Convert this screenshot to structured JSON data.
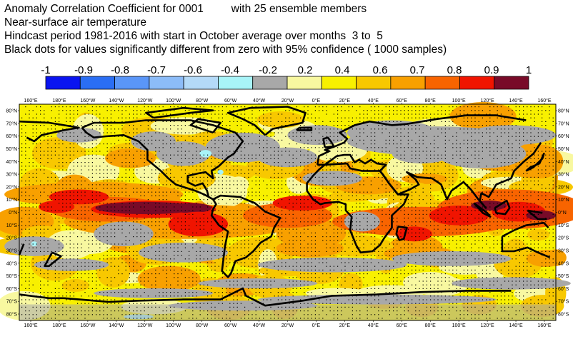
{
  "title": {
    "line1": "Anomaly Correlation Coefficient for 0001         with 25 ensemble members",
    "line2": "Near-surface air temperature",
    "line3": "Hindcast period 1981-2016 with start in October average over months  3 to  5",
    "line4": "Black dots for values significantly different from zero with 95% confidence ( 1000 samples)"
  },
  "legend": {
    "labels": [
      "-1",
      "-0.9",
      "-0.8",
      "-0.7",
      "-0.6",
      "-0.4",
      "-0.2",
      "0.2",
      "0.4",
      "0.6",
      "0.7",
      "0.8",
      "0.9",
      "1"
    ],
    "colors": [
      "#0a14f0",
      "#2a6ef4",
      "#5a96f8",
      "#8cbcf8",
      "#b4daf8",
      "#a8f4f8",
      "#a8a8a8",
      "#f8f8a0",
      "#f8f000",
      "#f8c800",
      "#f8a000",
      "#f86400",
      "#f01400",
      "#780a28"
    ]
  },
  "map": {
    "lon_labels": [
      "160°E",
      "180°E",
      "160°W",
      "140°W",
      "120°W",
      "100°W",
      "80°W",
      "60°W",
      "40°W",
      "20°W",
      "0°E",
      "20°E",
      "40°E",
      "60°E",
      "80°E",
      "100°E",
      "120°E",
      "140°E",
      "160°E"
    ],
    "lat_labels": [
      "80°N",
      "70°N",
      "60°N",
      "50°N",
      "40°N",
      "30°N",
      "20°N",
      "10°N",
      "0°N",
      "10°S",
      "20°S",
      "30°S",
      "40°S",
      "50°S",
      "60°S",
      "70°S",
      "80°S"
    ],
    "palette": {
      "gray": "#a8a8a8",
      "yellow": "#f8f000",
      "lightyellow": "#f8f8a0",
      "gold": "#f8c800",
      "orange": "#f8a000",
      "darkorange": "#f86400",
      "red": "#f01400",
      "maroon": "#780a28",
      "cyan": "#a8f4f8"
    }
  }
}
